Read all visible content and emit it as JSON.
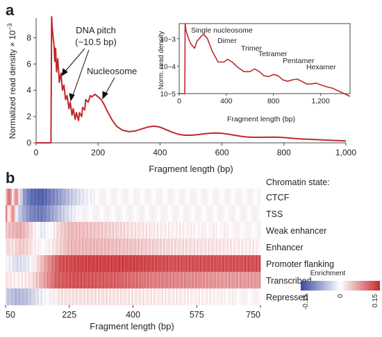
{
  "panel_a": {
    "label": "a",
    "annotations": {
      "dna_pitch_line1": "DNA pitch",
      "dna_pitch_line2": "(~10.5 bp)",
      "nucleosome": "Nucleosome"
    }
  },
  "panel_b": {
    "label": "b"
  },
  "chart_data": [
    {
      "type": "line",
      "xlabel": "Fragment length (bp)",
      "ylabel": "Normalized read density × 10",
      "ylabel_exponent": "−3",
      "xlim": [
        0,
        1000
      ],
      "ylim": [
        0,
        9.5
      ],
      "x_tick_labels": [
        "0",
        "200",
        "400",
        "600",
        "800",
        "1,000"
      ],
      "x_ticks": [
        0,
        200,
        400,
        600,
        800,
        1000
      ],
      "y_tick_labels": [
        "0",
        "2",
        "4",
        "6",
        "8"
      ],
      "y_ticks": [
        0,
        2,
        4,
        6,
        8
      ],
      "color": "#c0282d",
      "x": [
        0,
        48,
        50,
        52,
        55,
        58,
        60,
        63,
        66,
        70,
        75,
        80,
        85,
        90,
        95,
        100,
        106,
        110,
        116,
        120,
        126,
        130,
        137,
        140,
        147,
        150,
        157,
        160,
        168,
        175,
        180,
        190,
        200,
        210,
        220,
        230,
        245,
        260,
        280,
        300,
        320,
        340,
        360,
        380,
        400,
        420,
        440,
        460,
        480,
        500,
        520,
        540,
        560,
        580,
        600,
        620,
        640,
        660,
        680,
        700,
        720,
        740,
        760,
        780,
        800,
        850,
        900,
        950,
        1000
      ],
      "y": [
        0,
        0,
        9.6,
        8.8,
        8.0,
        7.4,
        6.2,
        7.2,
        5.4,
        6.4,
        4.6,
        5.3,
        4.0,
        4.4,
        3.3,
        3.6,
        2.6,
        3.1,
        2.1,
        2.6,
        1.8,
        2.3,
        1.7,
        2.3,
        2.0,
        2.7,
        2.5,
        3.3,
        3.1,
        3.6,
        3.5,
        3.7,
        3.5,
        3.3,
        2.9,
        2.4,
        1.75,
        1.25,
        0.95,
        0.85,
        0.9,
        1.05,
        1.2,
        1.27,
        1.2,
        1.0,
        0.8,
        0.65,
        0.58,
        0.58,
        0.62,
        0.68,
        0.73,
        0.75,
        0.73,
        0.66,
        0.58,
        0.5,
        0.45,
        0.42,
        0.42,
        0.43,
        0.44,
        0.43,
        0.4,
        0.3,
        0.25,
        0.2,
        0.15
      ]
    },
    {
      "type": "line",
      "scale": "log",
      "xlabel": "Fragment length (bp)",
      "ylabel": "Norm. read density",
      "xlim": [
        0,
        1450
      ],
      "ylim_exponent": [
        -5,
        -2.45
      ],
      "x_tick_labels": [
        "0",
        "400",
        "800",
        "1,200"
      ],
      "x_ticks": [
        0,
        400,
        800,
        1200
      ],
      "y_tick_labels": [
        "10−3",
        "10−4",
        "10−5"
      ],
      "y_ticks_exponent": [
        -3,
        -4,
        -5
      ],
      "peak_labels": [
        "Single nucleosome",
        "Dimer",
        "Trimer",
        "Tetramer",
        "Pentamer",
        "Hexamer"
      ],
      "color": "#c0282d",
      "x": [
        0,
        48,
        50,
        60,
        80,
        100,
        130,
        150,
        170,
        190,
        210,
        240,
        280,
        330,
        380,
        410,
        450,
        500,
        550,
        600,
        640,
        680,
        720,
        760,
        800,
        840,
        880,
        920,
        960,
        1000,
        1040,
        1080,
        1120,
        1160,
        1200,
        1250,
        1300,
        1350,
        1400,
        1450
      ],
      "y_exponent": [
        -5,
        -5,
        -2.45,
        -2.75,
        -3.0,
        -3.2,
        -3.35,
        -3.1,
        -3.0,
        -2.9,
        -2.85,
        -3.0,
        -3.45,
        -3.85,
        -3.85,
        -3.75,
        -3.85,
        -4.05,
        -4.2,
        -4.2,
        -4.1,
        -4.2,
        -4.35,
        -4.38,
        -4.3,
        -4.35,
        -4.5,
        -4.55,
        -4.5,
        -4.47,
        -4.55,
        -4.65,
        -4.65,
        -4.62,
        -4.68,
        -4.75,
        -4.8,
        -4.9,
        -5.0,
        -5.1
      ]
    },
    {
      "type": "heatmap",
      "title": "Chromatin state:",
      "xlabel": "Fragment length (bp)",
      "xlim": [
        50,
        750
      ],
      "x_tick_labels": [
        "50",
        "225",
        "400",
        "575",
        "750"
      ],
      "x_ticks": [
        50,
        225,
        400,
        575,
        750
      ],
      "rows": [
        "CTCF",
        "TSS",
        "Weak enhancer",
        "Enhancer",
        "Promoter flanking",
        "Transcribed",
        "Repressed"
      ],
      "colorbar_title": "Enrichment",
      "colorbar_ticks": [
        "-0.15",
        "0",
        "0.15"
      ],
      "colorbar_range": [
        -0.15,
        0.15
      ],
      "colormap": [
        "#3a4aa0",
        "#ffffff",
        "#c8282d"
      ],
      "row_profiles": [
        [
          [
            50,
            0.02
          ],
          [
            60,
            0.12
          ],
          [
            70,
            0.0
          ],
          [
            80,
            0.1
          ],
          [
            90,
            -0.02
          ],
          [
            100,
            -0.08
          ],
          [
            120,
            -0.12
          ],
          [
            150,
            -0.13
          ],
          [
            170,
            -0.11
          ],
          [
            200,
            -0.08
          ],
          [
            225,
            -0.05
          ],
          [
            260,
            -0.02
          ],
          [
            300,
            0.0
          ],
          [
            400,
            0.0
          ],
          [
            750,
            0.0
          ]
        ],
        [
          [
            50,
            0.1
          ],
          [
            60,
            0.0
          ],
          [
            70,
            0.09
          ],
          [
            80,
            -0.02
          ],
          [
            95,
            -0.06
          ],
          [
            120,
            -0.1
          ],
          [
            150,
            -0.11
          ],
          [
            175,
            -0.08
          ],
          [
            200,
            -0.05
          ],
          [
            230,
            -0.02
          ],
          [
            260,
            0.0
          ],
          [
            750,
            0.0
          ]
        ],
        [
          [
            50,
            0.04
          ],
          [
            70,
            0.05
          ],
          [
            90,
            0.06
          ],
          [
            110,
            0.04
          ],
          [
            130,
            0.01
          ],
          [
            150,
            -0.02
          ],
          [
            170,
            0.0
          ],
          [
            200,
            0.03
          ],
          [
            225,
            0.05
          ],
          [
            300,
            0.04
          ],
          [
            400,
            0.02
          ],
          [
            500,
            0.01
          ],
          [
            750,
            0.0
          ]
        ],
        [
          [
            50,
            0.03
          ],
          [
            70,
            0.02
          ],
          [
            90,
            0.04
          ],
          [
            110,
            0.03
          ],
          [
            140,
            0.0
          ],
          [
            160,
            0.0
          ],
          [
            185,
            0.02
          ],
          [
            225,
            0.05
          ],
          [
            300,
            0.05
          ],
          [
            400,
            0.04
          ],
          [
            500,
            0.025
          ],
          [
            600,
            0.02
          ],
          [
            750,
            0.01
          ]
        ],
        [
          [
            50,
            0.0
          ],
          [
            80,
            -0.03
          ],
          [
            110,
            -0.02
          ],
          [
            140,
            0.03
          ],
          [
            170,
            0.08
          ],
          [
            200,
            0.12
          ],
          [
            260,
            0.13
          ],
          [
            400,
            0.13
          ],
          [
            500,
            0.12
          ],
          [
            600,
            0.12
          ],
          [
            700,
            0.12
          ],
          [
            750,
            0.12
          ]
        ],
        [
          [
            50,
            0.02
          ],
          [
            80,
            0.01
          ],
          [
            120,
            0.02
          ],
          [
            160,
            0.07
          ],
          [
            190,
            0.11
          ],
          [
            240,
            0.12
          ],
          [
            350,
            0.11
          ],
          [
            450,
            0.09
          ],
          [
            560,
            0.08
          ],
          [
            650,
            0.07
          ],
          [
            750,
            0.07
          ]
        ],
        [
          [
            50,
            -0.04
          ],
          [
            80,
            -0.06
          ],
          [
            110,
            -0.05
          ],
          [
            140,
            -0.02
          ],
          [
            170,
            0.0
          ],
          [
            200,
            0.02
          ],
          [
            300,
            0.02
          ],
          [
            450,
            0.015
          ],
          [
            600,
            0.01
          ],
          [
            750,
            0.0
          ]
        ]
      ]
    }
  ]
}
